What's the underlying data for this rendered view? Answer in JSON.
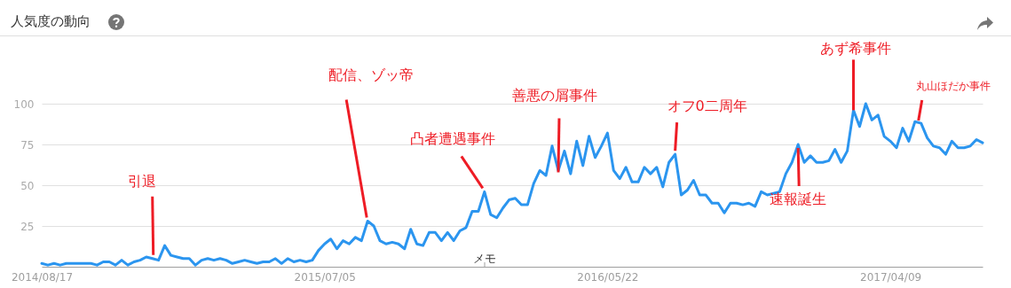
{
  "chart_data": {
    "type": "line",
    "title": "人気度の動向",
    "x": [
      "2014-08-17",
      "2014-08-24",
      "2014-08-31",
      "2014-09-07",
      "2014-09-14",
      "2014-09-21",
      "2014-09-28",
      "2014-10-05",
      "2014-10-12",
      "2014-10-19",
      "2014-10-26",
      "2014-11-02",
      "2014-11-09",
      "2014-11-16",
      "2014-11-23",
      "2014-11-30",
      "2014-12-07",
      "2014-12-14",
      "2014-12-21",
      "2014-12-28",
      "2015-01-04",
      "2015-01-11",
      "2015-01-18",
      "2015-01-25",
      "2015-02-01",
      "2015-02-08",
      "2015-02-15",
      "2015-02-22",
      "2015-03-01",
      "2015-03-08",
      "2015-03-15",
      "2015-03-22",
      "2015-03-29",
      "2015-04-05",
      "2015-04-12",
      "2015-04-19",
      "2015-04-26",
      "2015-05-03",
      "2015-05-10",
      "2015-05-17",
      "2015-05-24",
      "2015-05-31",
      "2015-06-07",
      "2015-06-14",
      "2015-06-21",
      "2015-06-28",
      "2015-07-05",
      "2015-07-12",
      "2015-07-19",
      "2015-07-26",
      "2015-08-02",
      "2015-08-09",
      "2015-08-16",
      "2015-08-23",
      "2015-08-30",
      "2015-09-06",
      "2015-09-13",
      "2015-09-20",
      "2015-09-27",
      "2015-10-04",
      "2015-10-11",
      "2015-10-18",
      "2015-10-25",
      "2015-11-01",
      "2015-11-08",
      "2015-11-15",
      "2015-11-22",
      "2015-11-29",
      "2015-12-06",
      "2015-12-13",
      "2015-12-20",
      "2015-12-27",
      "2016-01-03",
      "2016-01-10",
      "2016-01-17",
      "2016-01-24",
      "2016-01-31",
      "2016-02-07",
      "2016-02-14",
      "2016-02-21",
      "2016-02-28",
      "2016-03-06",
      "2016-03-13",
      "2016-03-20",
      "2016-03-27",
      "2016-04-03",
      "2016-04-10",
      "2016-04-17",
      "2016-04-24",
      "2016-05-01",
      "2016-05-08",
      "2016-05-15",
      "2016-05-22",
      "2016-05-29",
      "2016-06-05",
      "2016-06-12",
      "2016-06-19",
      "2016-06-26",
      "2016-07-03",
      "2016-07-10",
      "2016-07-17",
      "2016-07-24",
      "2016-07-31",
      "2016-08-07",
      "2016-08-14",
      "2016-08-21",
      "2016-08-28",
      "2016-09-04",
      "2016-09-11",
      "2016-09-18",
      "2016-09-25",
      "2016-10-02",
      "2016-10-09",
      "2016-10-16",
      "2016-10-23",
      "2016-10-30",
      "2016-11-06",
      "2016-11-13",
      "2016-11-20",
      "2016-11-27",
      "2016-12-04",
      "2016-12-11",
      "2016-12-18",
      "2016-12-25",
      "2017-01-01",
      "2017-01-08",
      "2017-01-15",
      "2017-01-22",
      "2017-01-29",
      "2017-02-05",
      "2017-02-12",
      "2017-02-19",
      "2017-02-26",
      "2017-03-05",
      "2017-03-12",
      "2017-03-19",
      "2017-03-26",
      "2017-04-02",
      "2017-04-09",
      "2017-04-16",
      "2017-04-23",
      "2017-04-30",
      "2017-05-07",
      "2017-05-14",
      "2017-05-21",
      "2017-05-28",
      "2017-06-04",
      "2017-06-11",
      "2017-06-18",
      "2017-06-25",
      "2017-07-02",
      "2017-07-09",
      "2017-07-16",
      "2017-07-23"
    ],
    "series": [
      {
        "color": "#2b95ef",
        "values": [
          2,
          1,
          2,
          1,
          2,
          2,
          2,
          2,
          2,
          1,
          3,
          3,
          1,
          4,
          1,
          3,
          4,
          6,
          5,
          4,
          13,
          7,
          6,
          5,
          5,
          1,
          4,
          5,
          4,
          5,
          4,
          2,
          3,
          4,
          3,
          2,
          3,
          3,
          5,
          2,
          5,
          3,
          4,
          3,
          4,
          10,
          14,
          17,
          11,
          16,
          14,
          18,
          16,
          28,
          25,
          16,
          14,
          15,
          14,
          11,
          23,
          14,
          13,
          21,
          21,
          16,
          21,
          16,
          22,
          24,
          34,
          34,
          46,
          32,
          30,
          36,
          41,
          42,
          38,
          38,
          51,
          59,
          56,
          74,
          59,
          71,
          57,
          77,
          62,
          80,
          67,
          74,
          82,
          59,
          54,
          61,
          52,
          52,
          61,
          57,
          61,
          49,
          64,
          69,
          44,
          47,
          53,
          44,
          44,
          39,
          39,
          33,
          39,
          39,
          38,
          39,
          37,
          46,
          44,
          45,
          46,
          57,
          64,
          75,
          64,
          68,
          64,
          64,
          65,
          72,
          64,
          71,
          96,
          86,
          100,
          90,
          93,
          80,
          77,
          73,
          85,
          77,
          89,
          88,
          79,
          74,
          73,
          69,
          77,
          73,
          73,
          74,
          78,
          76
        ]
      }
    ],
    "xlim": [
      "2014-08-17",
      "2017-07-23"
    ],
    "xticks": [
      {
        "value": "2014-08-17",
        "label": "2014/08/17"
      },
      {
        "value": "2015-07-05",
        "label": "2015/07/05"
      },
      {
        "value": "2016-05-22",
        "label": "2016/05/22"
      },
      {
        "value": "2017-04-09",
        "label": "2017/04/09"
      }
    ],
    "ylim": [
      0,
      100
    ],
    "yticks": [
      25,
      50,
      75,
      100
    ],
    "grid": "y",
    "annotations": [
      {
        "text": "引退",
        "x": "2014-12-21",
        "y": 5
      },
      {
        "text": "配信、ゾッ帝",
        "x": "2015-08-23",
        "y": 28
      },
      {
        "text": "凸者遭遇事件",
        "x": "2016-01-03",
        "y": 46
      },
      {
        "text": "善悪の屑事件",
        "x": "2016-03-27",
        "y": 59
      },
      {
        "text": "オフ0二周年",
        "x": "2016-08-07",
        "y": 69
      },
      {
        "text": "速報誕生",
        "x": "2016-12-25",
        "y": 75
      },
      {
        "text": "あず希事件",
        "x": "2017-02-26",
        "y": 96
      },
      {
        "text": "丸山ほだか事件",
        "x": "2017-05-14",
        "y": 88
      },
      "メモ"
    ]
  }
}
